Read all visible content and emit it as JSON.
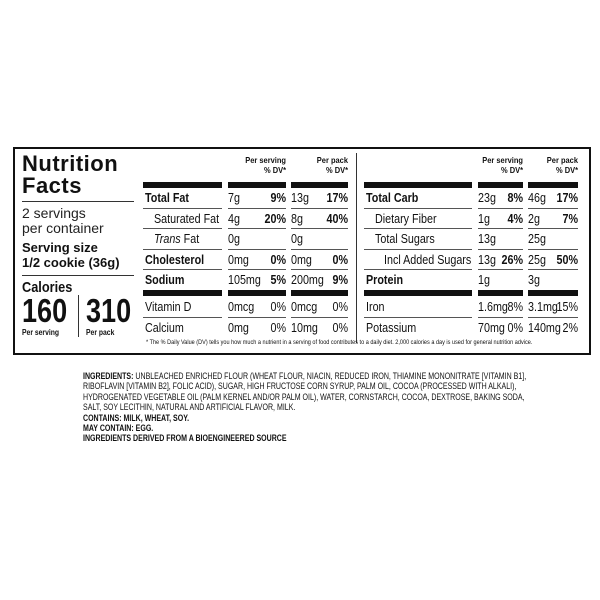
{
  "panel": {
    "title_line1": "Nutrition",
    "title_line2": "Facts",
    "servings_line1": "2 servings",
    "servings_line2": "per container",
    "serving_size_label": "Serving size",
    "serving_size_value": "1/2 cookie (36g)",
    "calories_label": "Calories",
    "calories_per_serving": "160",
    "calories_per_pack": "310",
    "per_serving_caption": "Per serving",
    "per_pack_caption": "Per pack"
  },
  "headers": {
    "per_serving": "Per serving",
    "per_pack": "Per pack",
    "dv": "% DV*"
  },
  "left_rows": [
    {
      "name": "Total Fat",
      "bold": true,
      "indent": 0,
      "s_amt": "7g",
      "s_pct": "9%",
      "p_amt": "13g",
      "p_pct": "17%",
      "pct_bold": true
    },
    {
      "name": "Saturated Fat",
      "bold": false,
      "indent": 1,
      "s_amt": "4g",
      "s_pct": "20%",
      "p_amt": "8g",
      "p_pct": "40%",
      "pct_bold": true
    },
    {
      "name": "Trans Fat",
      "bold": false,
      "indent": 1,
      "italic_prefix": "Trans",
      "s_amt": "0g",
      "s_pct": "",
      "p_amt": "0g",
      "p_pct": "",
      "pct_bold": true
    },
    {
      "name": "Cholesterol",
      "bold": true,
      "indent": 0,
      "s_amt": "0mg",
      "s_pct": "0%",
      "p_amt": "0mg",
      "p_pct": "0%",
      "pct_bold": true
    },
    {
      "name": "Sodium",
      "bold": true,
      "indent": 0,
      "s_amt": "105mg",
      "s_pct": "5%",
      "p_amt": "200mg",
      "p_pct": "9%",
      "pct_bold": true,
      "thick_after": true
    },
    {
      "name": "Vitamin D",
      "bold": false,
      "indent": 0,
      "s_amt": "0mcg",
      "s_pct": "0%",
      "p_amt": "0mcg",
      "p_pct": "0%",
      "pct_bold": false
    },
    {
      "name": "Calcium",
      "bold": false,
      "indent": 0,
      "s_amt": "0mg",
      "s_pct": "0%",
      "p_amt": "10mg",
      "p_pct": "0%",
      "pct_bold": false
    }
  ],
  "right_rows": [
    {
      "name": "Total Carb",
      "bold": true,
      "indent": 0,
      "s_amt": "23g",
      "s_pct": "8%",
      "p_amt": "46g",
      "p_pct": "17%",
      "pct_bold": true
    },
    {
      "name": "Dietary Fiber",
      "bold": false,
      "indent": 1,
      "s_amt": "1g",
      "s_pct": "4%",
      "p_amt": "2g",
      "p_pct": "7%",
      "pct_bold": true
    },
    {
      "name": "Total Sugars",
      "bold": false,
      "indent": 1,
      "s_amt": "13g",
      "s_pct": "",
      "p_amt": "25g",
      "p_pct": "",
      "pct_bold": true
    },
    {
      "name": "Incl Added Sugars",
      "bold": false,
      "indent": 2,
      "s_amt": "13g",
      "s_pct": "26%",
      "p_amt": "25g",
      "p_pct": "50%",
      "pct_bold": true
    },
    {
      "name": "Protein",
      "bold": true,
      "indent": 0,
      "s_amt": "1g",
      "s_pct": "",
      "p_amt": "3g",
      "p_pct": "",
      "pct_bold": true,
      "thick_after": true
    },
    {
      "name": "Iron",
      "bold": false,
      "indent": 0,
      "s_amt": "1.6mg",
      "s_pct": "8%",
      "p_amt": "3.1mg",
      "p_pct": "15%",
      "pct_bold": false
    },
    {
      "name": "Potassium",
      "bold": false,
      "indent": 0,
      "s_amt": "70mg",
      "s_pct": "0%",
      "p_amt": "140mg",
      "p_pct": "2%",
      "pct_bold": false
    }
  ],
  "footnote": "* The % Daily Value (DV) tells you how much a nutrient in a serving of food contributes to a daily diet. 2,000 calories a day is used for general nutrition advice.",
  "ingredients": {
    "label": "INGREDIENTS:",
    "lines": [
      "UNBLEACHED ENRICHED FLOUR (WHEAT FLOUR, NIACIN, REDUCED IRON, THIAMINE MONONITRATE [VITAMIN B1],",
      "RIBOFLAVIN [VITAMIN B2], FOLIC ACID), SUGAR, HIGH FRUCTOSE CORN SYRUP, PALM OIL, COCOA (PROCESSED WITH ALKALI),",
      "HYDROGENATED VEGETABLE OIL (PALM KERNEL AND/OR PALM OIL), WATER, CORNSTARCH, COCOA, DEXTROSE, BAKING SODA,",
      "SALT, SOY LECITHIN, NATURAL AND ARTIFICIAL FLAVOR, MILK."
    ],
    "contains": "CONTAINS: MILK, WHEAT, SOY.",
    "may_contain": "MAY CONTAIN: EGG.",
    "bioengineered": "INGREDIENTS DERIVED FROM A BIOENGINEERED SOURCE"
  }
}
